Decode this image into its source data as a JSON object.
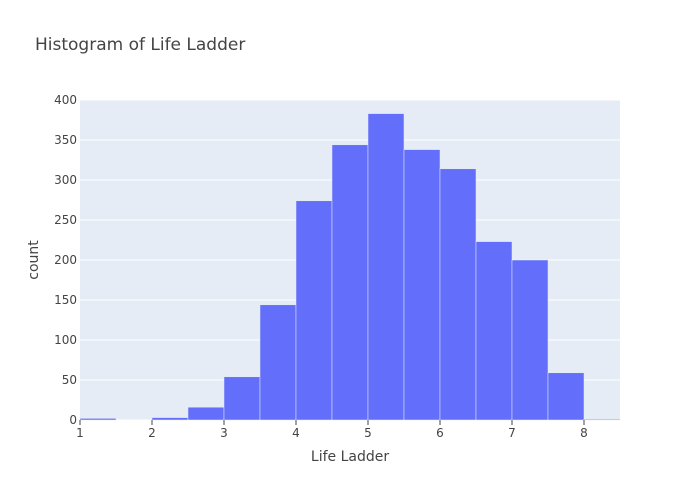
{
  "chart_data": {
    "type": "bar",
    "title": "Histogram of Life Ladder",
    "xlabel": "Life Ladder",
    "ylabel": "count",
    "xlim": [
      1,
      8.5
    ],
    "ylim": [
      0,
      400
    ],
    "xticks": [
      "1",
      "2",
      "3",
      "4",
      "5",
      "6",
      "7",
      "8"
    ],
    "yticks": [
      "0",
      "50",
      "100",
      "150",
      "200",
      "250",
      "300",
      "350",
      "400"
    ],
    "bin_width": 0.5,
    "bins": [
      {
        "x0": 1.0,
        "x1": 1.5,
        "count": 2
      },
      {
        "x0": 1.5,
        "x1": 2.0,
        "count": 0
      },
      {
        "x0": 2.0,
        "x1": 2.5,
        "count": 3
      },
      {
        "x0": 2.5,
        "x1": 3.0,
        "count": 16
      },
      {
        "x0": 3.0,
        "x1": 3.5,
        "count": 54
      },
      {
        "x0": 3.5,
        "x1": 4.0,
        "count": 144
      },
      {
        "x0": 4.0,
        "x1": 4.5,
        "count": 274
      },
      {
        "x0": 4.5,
        "x1": 5.0,
        "count": 344
      },
      {
        "x0": 5.0,
        "x1": 5.5,
        "count": 383
      },
      {
        "x0": 5.5,
        "x1": 6.0,
        "count": 338
      },
      {
        "x0": 6.0,
        "x1": 6.5,
        "count": 314
      },
      {
        "x0": 6.5,
        "x1": 7.0,
        "count": 223
      },
      {
        "x0": 7.0,
        "x1": 7.5,
        "count": 200
      },
      {
        "x0": 7.5,
        "x1": 8.0,
        "count": 59
      },
      {
        "x0": 8.0,
        "x1": 8.5,
        "count": 1
      }
    ],
    "grid": true,
    "colors": {
      "bar": "#636efa",
      "plot_bg": "#e5ecf6",
      "grid": "#ffffff"
    }
  }
}
